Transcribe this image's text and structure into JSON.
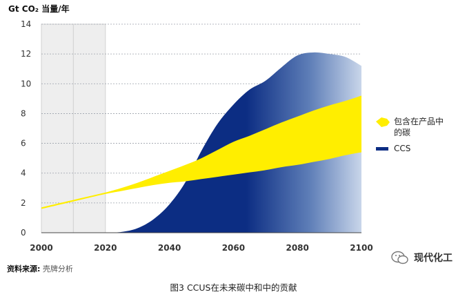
{
  "chart_data": {
    "type": "area",
    "y_unit_label": "Gt CO₂ 当量/年",
    "x_ticks": [
      "2000",
      "2020",
      "2040",
      "2060",
      "2080",
      "2100"
    ],
    "y_ticks": [
      "0",
      "2",
      "4",
      "6",
      "8",
      "10",
      "12",
      "14"
    ],
    "xlim": [
      2000,
      2100
    ],
    "ylim": [
      0,
      14
    ],
    "shaded_periods": [
      [
        2000,
        2010
      ],
      [
        2010,
        2020
      ]
    ],
    "series": [
      {
        "name": "包含在产品中的碳",
        "color": "#ffee00",
        "x": [
          2000,
          2010,
          2020,
          2025,
          2030,
          2035,
          2040,
          2045,
          2050,
          2055,
          2060,
          2065,
          2070,
          2075,
          2080,
          2085,
          2090,
          2095,
          2100
        ],
        "lower": [
          1.6,
          2.1,
          2.6,
          2.8,
          3.0,
          3.2,
          3.35,
          3.45,
          3.6,
          3.75,
          3.9,
          4.05,
          4.2,
          4.4,
          4.55,
          4.75,
          4.95,
          5.2,
          5.4
        ],
        "upper": [
          1.7,
          2.2,
          2.7,
          3.0,
          3.35,
          3.75,
          4.15,
          4.55,
          5.0,
          5.55,
          6.1,
          6.5,
          6.95,
          7.4,
          7.8,
          8.2,
          8.55,
          8.85,
          9.2
        ]
      },
      {
        "name": "CCS",
        "color": "#0c2d83",
        "x": [
          2020,
          2025,
          2030,
          2035,
          2040,
          2045,
          2050,
          2055,
          2060,
          2065,
          2070,
          2075,
          2080,
          2085,
          2090,
          2095,
          2100
        ],
        "values": [
          0,
          0.05,
          0.3,
          0.9,
          1.9,
          3.4,
          5.5,
          7.3,
          8.6,
          9.6,
          10.2,
          11.1,
          11.9,
          12.1,
          12.0,
          11.8,
          11.2
        ]
      }
    ],
    "legend": [
      {
        "label": "包含在产品中\n的碳",
        "color": "#ffee00",
        "shape": "arrow-blob"
      },
      {
        "label": "CCS",
        "color": "#0c2d83",
        "shape": "bar"
      }
    ]
  },
  "source": {
    "label": "资料来源:",
    "value": "壳牌分析"
  },
  "caption": "图3  CCUS在未来碳中和中的贡献",
  "watermark": {
    "text": "现代化工",
    "icon": "wechat-icon"
  }
}
